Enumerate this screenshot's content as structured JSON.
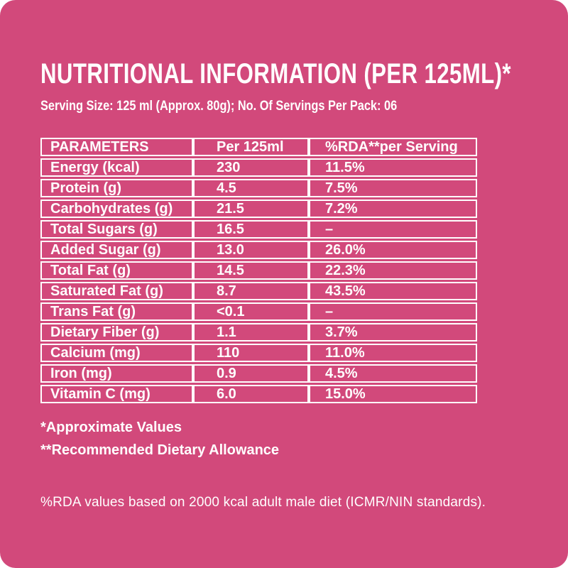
{
  "colors": {
    "background": "#d2497b",
    "text": "#ffffff",
    "table_border": "#ffffff"
  },
  "header": {
    "title": "NUTRITIONAL INFORMATION (PER 125ML)*",
    "serving_info": "Serving Size: 125 ml (Approx. 80g); No. Of Servings Per Pack: 06"
  },
  "table": {
    "columns": [
      "PARAMETERS",
      "Per 125ml",
      "%RDA**per Serving"
    ],
    "rows": [
      {
        "parameter": "Energy (kcal)",
        "value": "230",
        "rda": "11.5%"
      },
      {
        "parameter": "Protein (g)",
        "value": "4.5",
        "rda": "7.5%"
      },
      {
        "parameter": "Carbohydrates (g)",
        "value": "21.5",
        "rda": "7.2%"
      },
      {
        "parameter": "Total Sugars (g)",
        "value": "16.5",
        "rda": "–"
      },
      {
        "parameter": "Added Sugar (g)",
        "value": "13.0",
        "rda": "26.0%"
      },
      {
        "parameter": "Total Fat (g)",
        "value": "14.5",
        "rda": "22.3%"
      },
      {
        "parameter": "Saturated Fat (g)",
        "value": "8.7",
        "rda": "43.5%"
      },
      {
        "parameter": "Trans Fat (g)",
        "value": "<0.1",
        "rda": "–"
      },
      {
        "parameter": "Dietary Fiber (g)",
        "value": "1.1",
        "rda": "3.7%"
      },
      {
        "parameter": "Calcium (mg)",
        "value": "110",
        "rda": "11.0%"
      },
      {
        "parameter": "Iron (mg)",
        "value": "0.9",
        "rda": "4.5%"
      },
      {
        "parameter": "Vitamin C (mg)",
        "value": "6.0",
        "rda": "15.0%"
      }
    ]
  },
  "footnotes": {
    "approximate": "*Approximate Values",
    "rda_allowance": "**Recommended Dietary Allowance"
  },
  "disclaimer": "%RDA values based on 2000 kcal adult male diet (ICMR/NIN standards)."
}
